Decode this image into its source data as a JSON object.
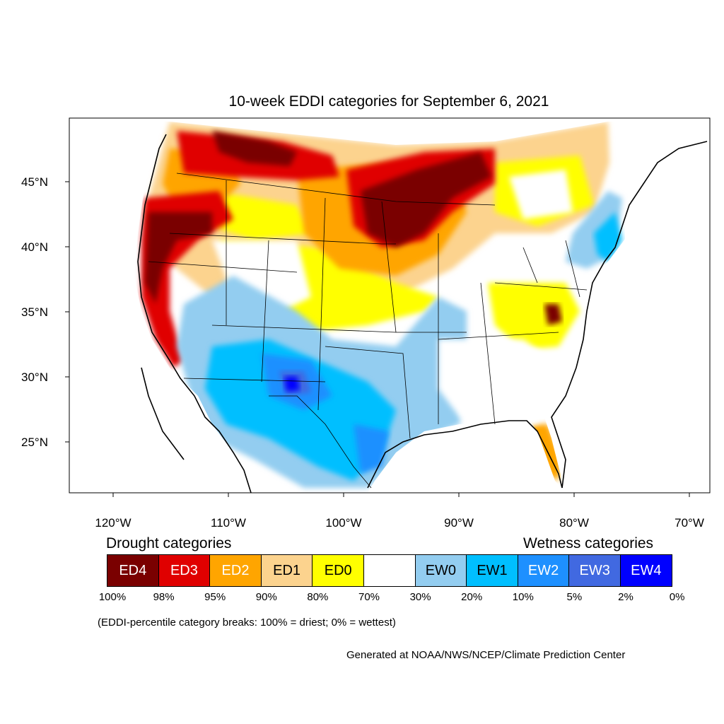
{
  "title": "10-week EDDI categories for September 6, 2021",
  "axes": {
    "lon_labels": [
      "120°W",
      "110°W",
      "100°W",
      "90°W",
      "80°W",
      "70°W"
    ],
    "lat_labels": [
      "45°N",
      "40°N",
      "35°N",
      "30°N",
      "25°N"
    ]
  },
  "legend": {
    "drought_heading": "Drought categories",
    "wetness_heading": "Wetness categories",
    "categories": [
      {
        "label": "ED4",
        "color": "#7a0000",
        "text_color": "#ffffff"
      },
      {
        "label": "ED3",
        "color": "#e00000",
        "text_color": "#ffffff"
      },
      {
        "label": "ED2",
        "color": "#ffa500",
        "text_color": "#ffffff"
      },
      {
        "label": "ED1",
        "color": "#fcd38e",
        "text_color": "#000000"
      },
      {
        "label": "ED0",
        "color": "#ffff00",
        "text_color": "#000000"
      },
      {
        "label": "",
        "color": "#ffffff",
        "text_color": "#000000"
      },
      {
        "label": "EW0",
        "color": "#93cdf0",
        "text_color": "#000000"
      },
      {
        "label": "EW1",
        "color": "#00bfff",
        "text_color": "#000000"
      },
      {
        "label": "EW2",
        "color": "#1e90ff",
        "text_color": "#ffffff"
      },
      {
        "label": "EW3",
        "color": "#4169e1",
        "text_color": "#ffffff"
      },
      {
        "label": "EW4",
        "color": "#0000ff",
        "text_color": "#ffffff"
      }
    ],
    "breaks": [
      "100%",
      "98%",
      "95%",
      "90%",
      "80%",
      "70%",
      "30%",
      "20%",
      "10%",
      "5%",
      "2%",
      "0%"
    ]
  },
  "note": "(EDDI-percentile category breaks: 100% = driest; 0% = wettest)",
  "credit": "Generated at NOAA/NWS/NCEP/Climate Prediction Center"
}
